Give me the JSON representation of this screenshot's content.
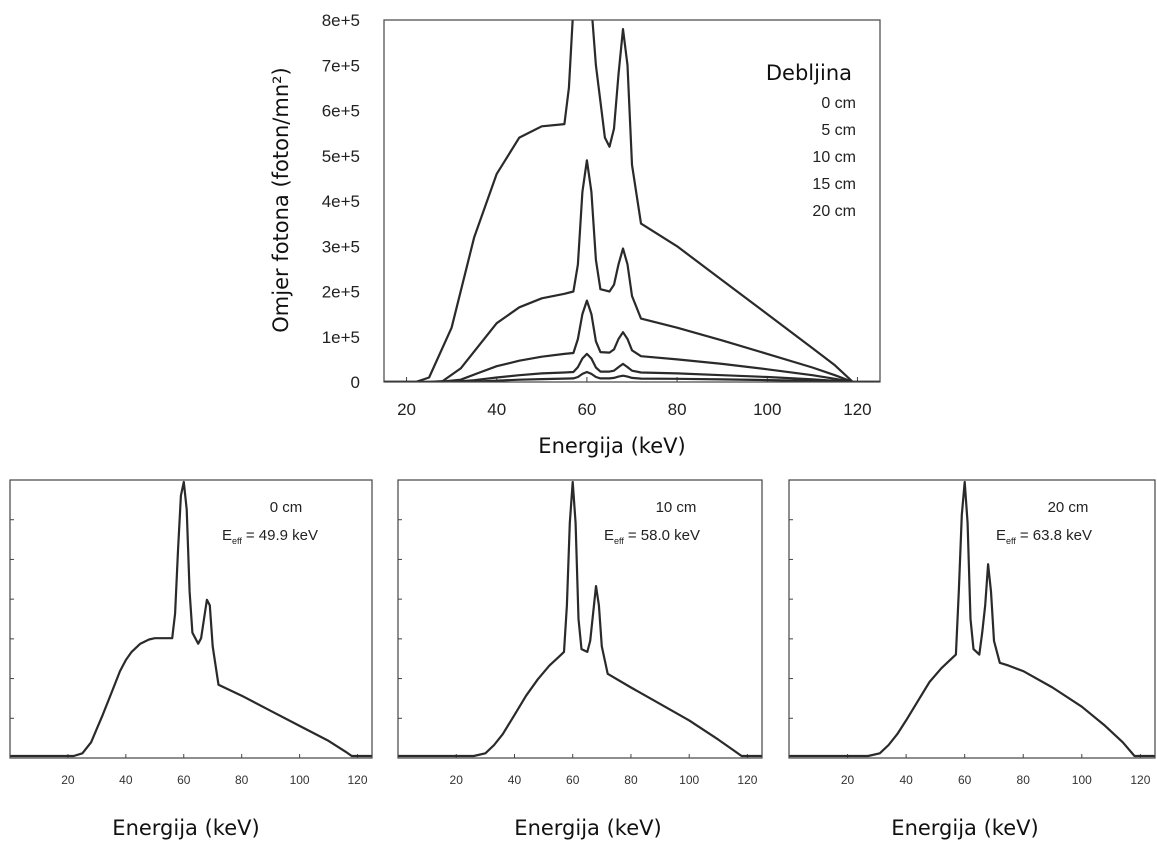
{
  "chart_data": [
    {
      "type": "line",
      "xlabel": "Energija (keV)",
      "ylabel": "Omjer fotona (foton/mn²)",
      "xlim": [
        15,
        125
      ],
      "ylim": [
        0,
        800000
      ],
      "x_ticks": [
        "20",
        "40",
        "60",
        "80",
        "100",
        "120"
      ],
      "y_ticks": [
        "0",
        "1e+5",
        "2e+5",
        "3e+5",
        "4e+5",
        "5e+5",
        "6e+5",
        "7e+5",
        "8e+5"
      ],
      "legend_title": "Debljina",
      "legend_placement": "top-right",
      "series": [
        {
          "name": "0 cm",
          "x": [
            15,
            22,
            25,
            30,
            35,
            40,
            45,
            50,
            55,
            56,
            57,
            58,
            59,
            60,
            61,
            62,
            63,
            64,
            65,
            66,
            67,
            68,
            69,
            70,
            72,
            80,
            90,
            100,
            110,
            115,
            119,
            125
          ],
          "y": [
            0,
            0,
            10000,
            120000,
            320000,
            460000,
            540000,
            565000,
            570000,
            650000,
            830000,
            850000,
            850000,
            850000,
            830000,
            700000,
            620000,
            540000,
            520000,
            560000,
            680000,
            780000,
            700000,
            480000,
            350000,
            300000,
            225000,
            150000,
            75000,
            37000,
            0,
            0
          ]
        },
        {
          "name": "5 cm",
          "x": [
            15,
            25,
            28,
            32,
            36,
            40,
            45,
            50,
            55,
            57,
            58,
            59,
            60,
            61,
            62,
            63,
            65,
            66,
            67,
            68,
            69,
            70,
            72,
            80,
            90,
            100,
            110,
            115,
            119,
            125
          ],
          "y": [
            0,
            0,
            2000,
            30000,
            80000,
            130000,
            165000,
            185000,
            195000,
            200000,
            260000,
            420000,
            490000,
            420000,
            270000,
            205000,
            200000,
            215000,
            260000,
            295000,
            260000,
            190000,
            140000,
            120000,
            92000,
            62000,
            32000,
            15000,
            0,
            0
          ]
        },
        {
          "name": "10 cm",
          "x": [
            15,
            27,
            32,
            36,
            40,
            45,
            50,
            55,
            57,
            58,
            59,
            60,
            61,
            62,
            63,
            65,
            66,
            67,
            68,
            69,
            70,
            72,
            80,
            90,
            100,
            110,
            115,
            119,
            125
          ],
          "y": [
            0,
            0,
            5000,
            20000,
            35000,
            47000,
            56000,
            62000,
            64000,
            95000,
            150000,
            180000,
            150000,
            90000,
            66000,
            65000,
            72000,
            95000,
            110000,
            95000,
            70000,
            57000,
            50000,
            40000,
            28000,
            15000,
            7000,
            0,
            0
          ]
        },
        {
          "name": "15 cm",
          "x": [
            15,
            30,
            35,
            40,
            45,
            50,
            55,
            57,
            58,
            59,
            60,
            61,
            62,
            63,
            65,
            66,
            67,
            68,
            69,
            70,
            72,
            80,
            90,
            100,
            110,
            119,
            125
          ],
          "y": [
            0,
            0,
            4000,
            10000,
            15000,
            19000,
            21000,
            22000,
            33000,
            52000,
            62000,
            52000,
            32000,
            23000,
            23000,
            25000,
            33000,
            40000,
            33000,
            25000,
            21000,
            19000,
            15000,
            11000,
            6000,
            0,
            0
          ]
        },
        {
          "name": "20 cm",
          "x": [
            15,
            32,
            38,
            45,
            50,
            55,
            57,
            58,
            59,
            60,
            61,
            62,
            63,
            65,
            66,
            67,
            68,
            69,
            70,
            72,
            80,
            90,
            100,
            110,
            119,
            125
          ],
          "y": [
            0,
            0,
            2000,
            5000,
            6500,
            7500,
            8000,
            11000,
            18000,
            22000,
            18000,
            11000,
            8000,
            8000,
            9000,
            12000,
            14000,
            12000,
            9000,
            7500,
            7000,
            5800,
            4200,
            2400,
            0,
            0
          ]
        }
      ]
    },
    {
      "type": "line",
      "xlabel": "Energija (keV)",
      "xlim": [
        0,
        125
      ],
      "ylim": [
        0,
        1
      ],
      "x_ticks": [
        "20",
        "40",
        "60",
        "80",
        "100",
        "120"
      ],
      "annotation": "0 cm",
      "eff_label": "E",
      "eff_sub": "eff",
      "eff_value": "= 49.9 keV",
      "x": [
        0,
        22,
        25,
        28,
        30,
        32,
        35,
        38,
        40,
        42,
        45,
        48,
        50,
        54,
        56,
        57,
        58,
        59,
        60,
        61,
        62,
        63,
        65,
        66,
        67,
        68,
        69,
        70,
        72,
        80,
        90,
        100,
        110,
        116,
        118,
        125
      ],
      "y": [
        0,
        0,
        0.01,
        0.05,
        0.1,
        0.15,
        0.23,
        0.31,
        0.35,
        0.38,
        0.41,
        0.425,
        0.43,
        0.43,
        0.43,
        0.52,
        0.75,
        0.95,
        1.0,
        0.9,
        0.6,
        0.45,
        0.41,
        0.43,
        0.5,
        0.57,
        0.55,
        0.4,
        0.26,
        0.22,
        0.165,
        0.11,
        0.055,
        0.015,
        0,
        0
      ]
    },
    {
      "type": "line",
      "xlabel": "Energija (keV)",
      "xlim": [
        0,
        125
      ],
      "ylim": [
        0,
        1
      ],
      "x_ticks": [
        "20",
        "40",
        "60",
        "80",
        "100",
        "120"
      ],
      "annotation": "10 cm",
      "eff_label": "E",
      "eff_sub": "eff",
      "eff_value": "= 58.0 keV",
      "x": [
        0,
        26,
        30,
        33,
        36,
        40,
        44,
        48,
        52,
        55,
        57,
        58,
        59,
        60,
        61,
        62,
        63,
        65,
        66,
        67,
        68,
        69,
        70,
        72,
        80,
        90,
        100,
        110,
        116,
        118,
        125
      ],
      "y": [
        0,
        0,
        0.01,
        0.04,
        0.08,
        0.15,
        0.22,
        0.28,
        0.33,
        0.36,
        0.38,
        0.55,
        0.85,
        1.0,
        0.85,
        0.5,
        0.39,
        0.38,
        0.42,
        0.52,
        0.62,
        0.55,
        0.4,
        0.3,
        0.25,
        0.19,
        0.13,
        0.06,
        0.015,
        0,
        0
      ]
    },
    {
      "type": "line",
      "xlabel": "Energija (keV)",
      "xlim": [
        0,
        125
      ],
      "ylim": [
        0,
        1
      ],
      "x_ticks": [
        "20",
        "40",
        "60",
        "80",
        "100",
        "120"
      ],
      "annotation": "20 cm",
      "eff_label": "E",
      "eff_sub": "eff",
      "eff_value": "= 63.8 keV",
      "x": [
        0,
        27,
        31,
        34,
        37,
        40,
        44,
        48,
        52,
        55,
        57,
        58,
        59,
        60,
        61,
        62,
        63,
        65,
        66,
        67,
        68,
        69,
        70,
        72,
        75,
        80,
        90,
        100,
        108,
        114,
        118,
        125
      ],
      "y": [
        0,
        0,
        0.01,
        0.04,
        0.08,
        0.13,
        0.2,
        0.27,
        0.32,
        0.35,
        0.37,
        0.6,
        0.88,
        1.0,
        0.85,
        0.5,
        0.39,
        0.37,
        0.45,
        0.55,
        0.7,
        0.6,
        0.42,
        0.34,
        0.33,
        0.31,
        0.25,
        0.18,
        0.11,
        0.05,
        0,
        0
      ]
    }
  ]
}
